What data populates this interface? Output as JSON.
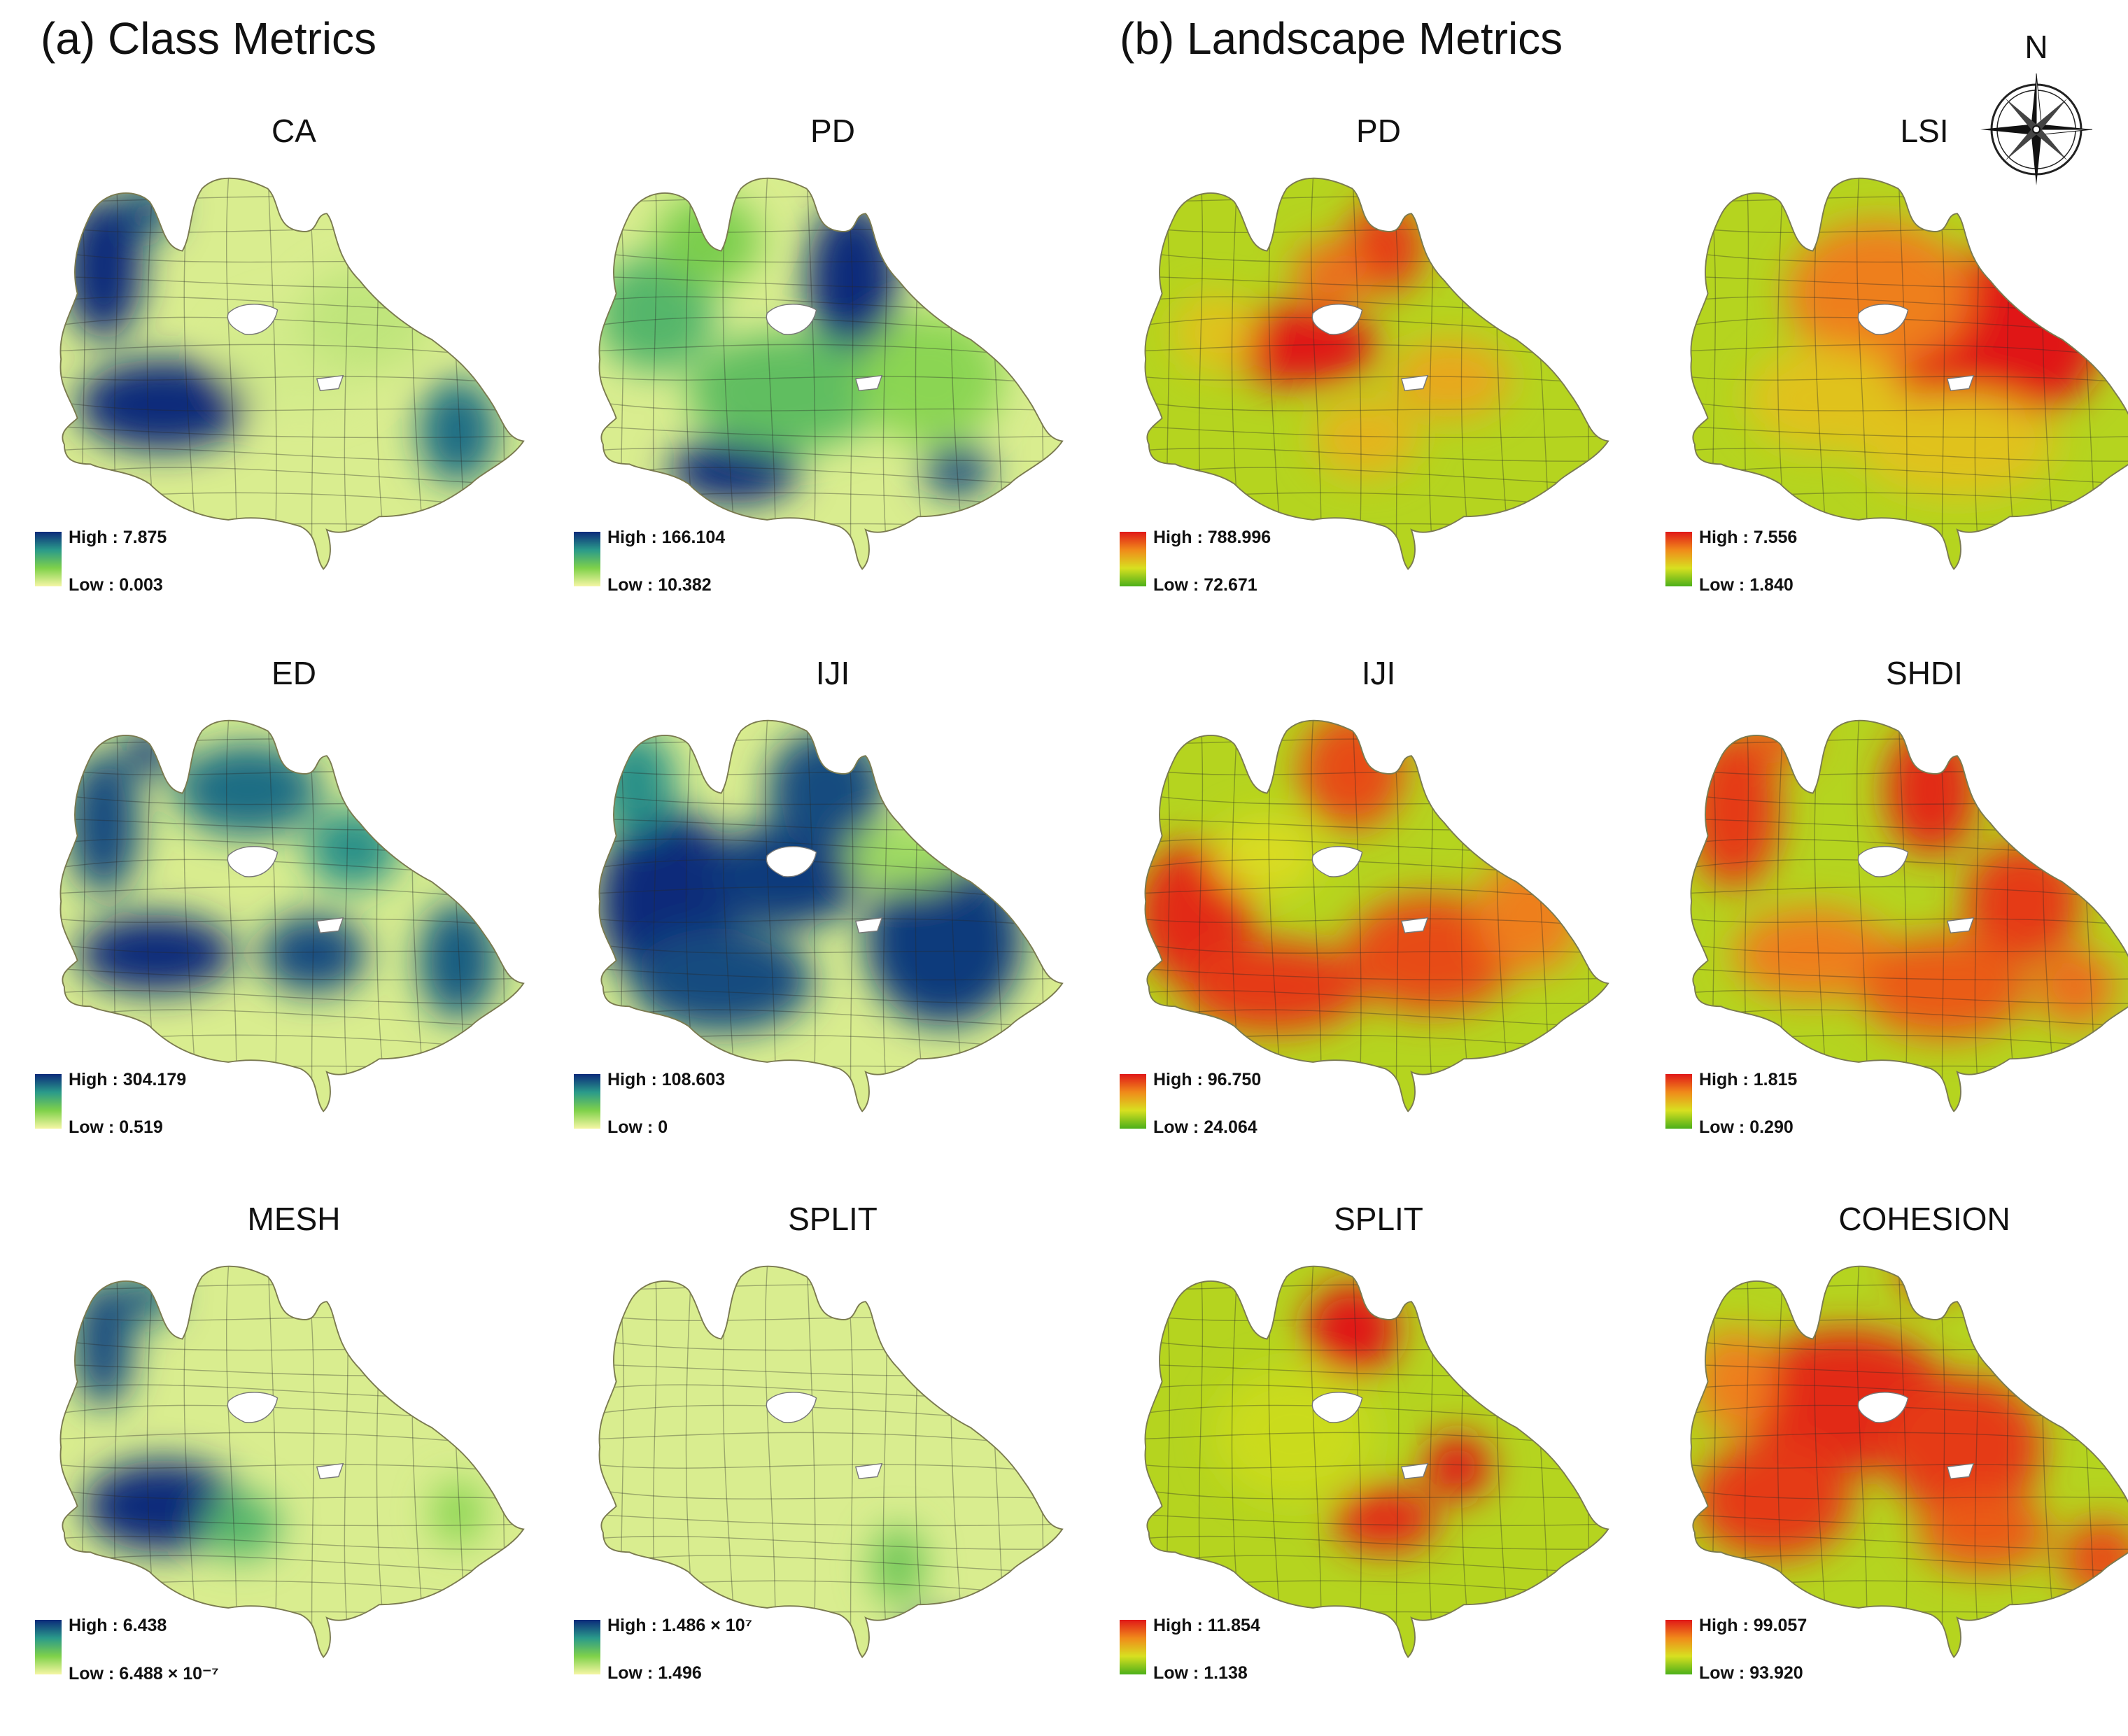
{
  "sections": {
    "class_title": "(a) Class Metrics",
    "landscape_title": "(b) Landscape Metrics"
  },
  "north_arrow": {
    "label": "N"
  },
  "color_ramps": {
    "class": [
      "#f5f6a5",
      "#7fd14a",
      "#2a9a8a",
      "#0b2a7a"
    ],
    "landscape": [
      "#4caf1a",
      "#d8e020",
      "#f08a1a",
      "#e01818"
    ]
  },
  "panels": [
    {
      "id": "class-ca",
      "title": "CA",
      "ramp": "class",
      "high": "High : 7.875",
      "low": "Low : 0.003"
    },
    {
      "id": "class-pd",
      "title": "PD",
      "ramp": "class",
      "high": "High : 166.104",
      "low": "Low : 10.382"
    },
    {
      "id": "land-pd",
      "title": "PD",
      "ramp": "landscape",
      "high": "High : 788.996",
      "low": "Low : 72.671"
    },
    {
      "id": "land-lsi",
      "title": "LSI",
      "ramp": "landscape",
      "high": "High : 7.556",
      "low": "Low : 1.840"
    },
    {
      "id": "class-ed",
      "title": "ED",
      "ramp": "class",
      "high": "High : 304.179",
      "low": "Low : 0.519"
    },
    {
      "id": "class-iji",
      "title": "IJI",
      "ramp": "class",
      "high": "High : 108.603",
      "low": "Low : 0"
    },
    {
      "id": "land-iji",
      "title": "IJI",
      "ramp": "landscape",
      "high": "High : 96.750",
      "low": "Low : 24.064"
    },
    {
      "id": "land-shdi",
      "title": "SHDI",
      "ramp": "landscape",
      "high": "High : 1.815",
      "low": "Low : 0.290"
    },
    {
      "id": "class-mesh",
      "title": "MESH",
      "ramp": "class",
      "high": "High : 6.438",
      "low": "Low : 6.488 × 10⁻⁷"
    },
    {
      "id": "class-split",
      "title": "SPLIT",
      "ramp": "class",
      "high": "High : 1.486 × 10⁷",
      "low": "Low : 1.496"
    },
    {
      "id": "land-split",
      "title": "SPLIT",
      "ramp": "landscape",
      "high": "High : 11.854",
      "low": "Low : 1.138"
    },
    {
      "id": "land-cohesion",
      "title": "COHESION",
      "ramp": "landscape",
      "high": "High : 99.057",
      "low": "Low : 93.920"
    }
  ]
}
